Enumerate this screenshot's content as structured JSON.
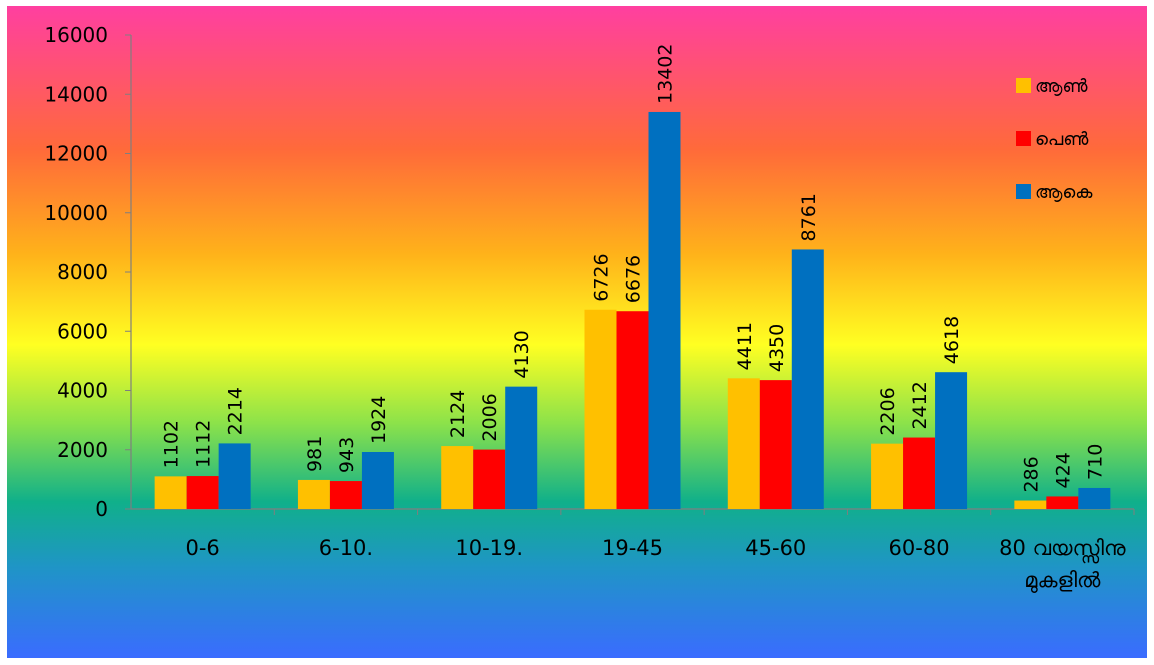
{
  "chart_data": {
    "type": "bar",
    "categories": [
      "0-6",
      "6-10.",
      "10-19.",
      "19-45",
      "45-60",
      "60-80",
      "80 വയസ്സിനു മുകളിൽ"
    ],
    "series": [
      {
        "name": "ആൺ",
        "color": "#FFC000",
        "values": [
          1102,
          981,
          2124,
          6726,
          4411,
          2206,
          286
        ]
      },
      {
        "name": "പെൺ",
        "color": "#FF0000",
        "values": [
          1112,
          943,
          2006,
          6676,
          4350,
          2412,
          424
        ]
      },
      {
        "name": "ആകെ",
        "color": "#0070C0",
        "values": [
          2214,
          1924,
          4130,
          13402,
          8761,
          4618,
          710
        ]
      }
    ],
    "data_labels": [
      [
        "1102",
        "981",
        "2124",
        "6726",
        "4411",
        "2206",
        "286"
      ],
      [
        "1112",
        "943",
        "2006",
        "6676",
        "4350",
        "2412",
        "424"
      ],
      [
        "2214",
        "1924",
        "4130",
        "13402",
        "8761",
        "4618",
        "710"
      ]
    ],
    "yticks": [
      "0",
      "2000",
      "4000",
      "6000",
      "8000",
      "10000",
      "12000",
      "14000",
      "16000"
    ],
    "ylim": [
      0,
      16000
    ],
    "title": "",
    "xlabel": "",
    "ylabel": "",
    "legend_position": "top-right",
    "grid": false,
    "background": "rainbow-gradient"
  }
}
